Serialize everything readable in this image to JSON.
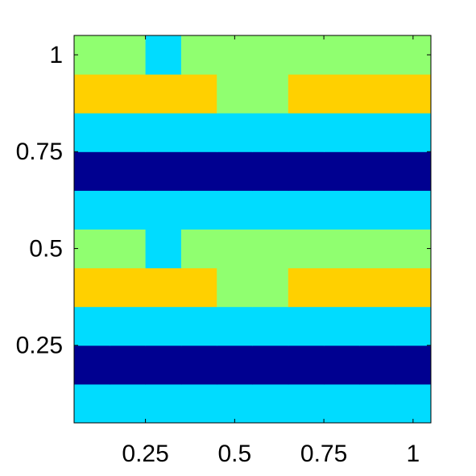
{
  "chart_data": {
    "type": "heatmap",
    "x": [
      0.1,
      0.2,
      0.3,
      0.4,
      0.5,
      0.6,
      0.7,
      0.8,
      0.9,
      1.0
    ],
    "y": [
      0.1,
      0.2,
      0.3,
      0.4,
      0.5,
      0.6,
      0.7,
      0.8,
      0.9,
      1.0
    ],
    "z": [
      [
        1,
        1,
        1,
        1,
        1,
        1,
        1,
        1,
        1,
        1
      ],
      [
        0,
        0,
        0,
        0,
        0,
        0,
        0,
        0,
        0,
        0
      ],
      [
        1,
        1,
        1,
        1,
        1,
        1,
        1,
        1,
        1,
        1
      ],
      [
        3,
        3,
        3,
        3,
        2,
        2,
        3,
        3,
        3,
        3
      ],
      [
        2,
        2,
        1,
        2,
        2,
        2,
        2,
        2,
        2,
        2
      ],
      [
        1,
        1,
        1,
        1,
        1,
        1,
        1,
        1,
        1,
        1
      ],
      [
        0,
        0,
        0,
        0,
        0,
        0,
        0,
        0,
        0,
        0
      ],
      [
        1,
        1,
        1,
        1,
        1,
        1,
        1,
        1,
        1,
        1
      ],
      [
        3,
        3,
        3,
        3,
        2,
        2,
        3,
        3,
        3,
        3
      ],
      [
        2,
        2,
        1,
        2,
        2,
        2,
        2,
        2,
        2,
        2
      ]
    ],
    "colormap": [
      {
        "value": 0,
        "color": "#000090"
      },
      {
        "value": 1,
        "color": "#00dcff"
      },
      {
        "value": 2,
        "color": "#90ff70"
      },
      {
        "value": 3,
        "color": "#ffd000"
      }
    ],
    "xlim": [
      0.05,
      1.05
    ],
    "ylim": [
      0.05,
      1.05
    ],
    "xticks": [
      0.25,
      0.5,
      0.75,
      1
    ],
    "yticks": [
      0.25,
      0.5,
      0.75,
      1
    ]
  }
}
